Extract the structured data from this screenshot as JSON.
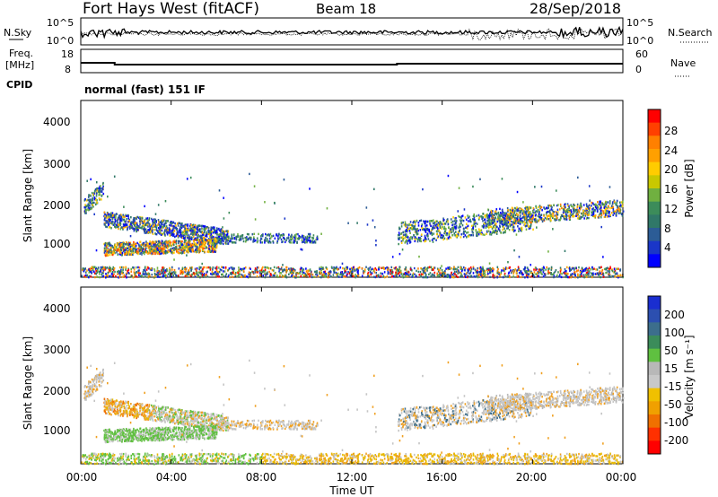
{
  "header": {
    "title": "Fort Hays West (fitACF)",
    "beam": "Beam 18",
    "date": "28/Sep/2018"
  },
  "top_panels": {
    "nsky_label": "N.Sky",
    "nsky_ticks": [
      "10^5",
      "10^0"
    ],
    "nsearch_label": "N.Search",
    "nsearch_ticks": [
      "10^5",
      "10^0"
    ],
    "freq_label_1": "Freq.",
    "freq_label_2": "[MHz]",
    "freq_ticks": [
      "18",
      "8"
    ],
    "nave_label": "Nave",
    "nave_ticks": [
      "60",
      "0"
    ],
    "cpid_label": "CPID",
    "cpid_text": "normal (fast) 151 IF"
  },
  "x_axis": {
    "label": "Time UT",
    "ticks": [
      "00:00",
      "04:00",
      "08:00",
      "12:00",
      "16:00",
      "20:00",
      "00:00"
    ]
  },
  "power_panel": {
    "ylabel": "Slant Range [km]",
    "yticks": [
      "4000",
      "3000",
      "2000",
      "1000"
    ],
    "cbar_label": "Power [dB]",
    "cbar_ticks": [
      "28",
      "24",
      "20",
      "16",
      "12",
      "8",
      "4"
    ],
    "cbar_colors": [
      "#ff0000",
      "#ff4000",
      "#ff8000",
      "#ffa000",
      "#ffcc00",
      "#c8c800",
      "#70b040",
      "#3c8c5a",
      "#307868",
      "#2c5c96",
      "#1a36c8",
      "#0000ff"
    ]
  },
  "velocity_panel": {
    "ylabel": "Slant Range [km]",
    "yticks": [
      "4000",
      "3000",
      "2000",
      "1000"
    ],
    "cbar_label": "Velocity [m s⁻¹]",
    "cbar_ticks": [
      "200",
      "100",
      "50",
      "15",
      "-15",
      "-50",
      "-100",
      "-200"
    ],
    "cbar_colors": [
      "#1a2ed0",
      "#2c4fb0",
      "#3c6e8c",
      "#3b8c5a",
      "#5fc040",
      "#b8b8b8",
      "#c8c8c8",
      "#f0c000",
      "#f0a000",
      "#f07000",
      "#ff3000",
      "#ff0000"
    ]
  },
  "chart_data": {
    "type": "heatmap",
    "x_range_hours": [
      0,
      24
    ],
    "y_range_km": [
      180,
      4600
    ],
    "regions": [
      {
        "name": "early-echo",
        "t": [
          0.1,
          1.0
        ],
        "r": [
          1800,
          2600
        ]
      },
      {
        "name": "band-upper",
        "t": [
          1.0,
          6.5
        ],
        "r": [
          1150,
          1750
        ]
      },
      {
        "name": "band-lower",
        "t": [
          1.0,
          6.0
        ],
        "r": [
          750,
          1150
        ]
      },
      {
        "name": "tail",
        "t": [
          6.0,
          10.5
        ],
        "r": [
          1000,
          1350
        ]
      },
      {
        "name": "ground-scatter",
        "t": [
          0.0,
          24.0
        ],
        "r": [
          200,
          450
        ]
      },
      {
        "name": "evening-band",
        "t": [
          14.0,
          24.0
        ],
        "r": [
          1100,
          2300
        ]
      }
    ]
  }
}
